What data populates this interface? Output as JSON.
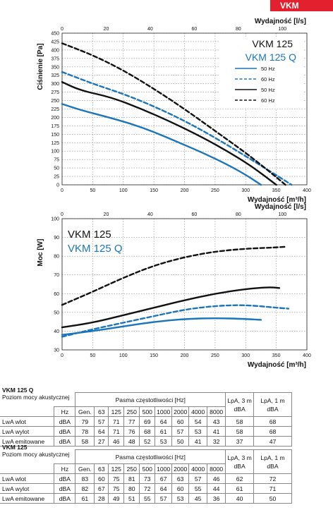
{
  "product_tag": "VKM",
  "chart_data": [
    {
      "type": "line",
      "title": "",
      "top_axis_label": "Wydajność [l/s]",
      "top_ticks": [
        "0",
        "20",
        "40",
        "60",
        "80",
        "100"
      ],
      "xlabel": "Wydajność [m³/h]",
      "ylabel": "Ciśnienie [Pa]",
      "xlim": [
        0,
        400
      ],
      "ylim": [
        0,
        450
      ],
      "x_ticks": [
        "0",
        "50",
        "100",
        "150",
        "200",
        "250",
        "300",
        "350",
        "400"
      ],
      "y_ticks": [
        "0",
        "25",
        "50",
        "75",
        "100",
        "125",
        "150",
        "175",
        "200",
        "225",
        "250",
        "275",
        "300",
        "325",
        "350",
        "375",
        "400",
        "425",
        "450"
      ],
      "model_labels": {
        "black": "VKM 125",
        "blue": "VKM 125 Q"
      },
      "legend": [
        "50 Hz",
        "60 Hz",
        "50 Hz",
        "60 Hz"
      ],
      "series": [
        {
          "name": "50 Hz",
          "model": "VKM 125 Q",
          "color": "#1b75bb",
          "dash": false,
          "x": [
            0,
            30,
            70,
            110,
            150,
            190,
            230,
            270,
            300,
            325
          ],
          "y": [
            240,
            222,
            203,
            183,
            157,
            126,
            95,
            60,
            30,
            0
          ]
        },
        {
          "name": "60 Hz",
          "model": "VKM 125 Q",
          "color": "#1b75bb",
          "dash": true,
          "x": [
            0,
            50,
            100,
            150,
            200,
            250,
            300,
            340,
            375
          ],
          "y": [
            335,
            300,
            270,
            233,
            190,
            140,
            85,
            40,
            0
          ]
        },
        {
          "name": "50 Hz",
          "model": "VKM 125",
          "color": "#111111",
          "dash": false,
          "x": [
            0,
            30,
            80,
            130,
            180,
            230,
            270,
            310,
            350
          ],
          "y": [
            305,
            280,
            260,
            225,
            185,
            140,
            100,
            55,
            0
          ]
        },
        {
          "name": "60 Hz",
          "model": "VKM 125",
          "color": "#111111",
          "dash": true,
          "x": [
            0,
            50,
            100,
            150,
            200,
            250,
            300,
            335,
            365
          ],
          "y": [
            420,
            385,
            340,
            285,
            225,
            160,
            95,
            45,
            0
          ]
        }
      ]
    },
    {
      "type": "line",
      "title": "",
      "top_axis_label": "Wydajność [l/s]",
      "top_ticks": [
        "0",
        "20",
        "40",
        "60",
        "80",
        "100"
      ],
      "xlabel": "Wydajność [m³/h]",
      "ylabel": "Moc [W]",
      "xlim": [
        0,
        400
      ],
      "ylim": [
        30,
        100
      ],
      "x_ticks": [
        "0",
        "50",
        "100",
        "150",
        "200",
        "250",
        "300",
        "350",
        "400"
      ],
      "y_ticks": [
        "30",
        "40",
        "50",
        "60",
        "70",
        "80",
        "90",
        "100"
      ],
      "model_labels": {
        "black": "VKM 125",
        "blue": "VKM 125 Q"
      },
      "series": [
        {
          "model": "VKM 125 Q",
          "variant": "50 Hz",
          "color": "#1b75bb",
          "dash": false,
          "x": [
            0,
            50,
            100,
            150,
            200,
            250,
            300,
            325
          ],
          "y": [
            38,
            40,
            42.5,
            45,
            46.5,
            47,
            46.5,
            46
          ]
        },
        {
          "model": "VKM 125 Q",
          "variant": "60 Hz",
          "color": "#1b75bb",
          "dash": true,
          "x": [
            0,
            50,
            100,
            150,
            200,
            250,
            300,
            350,
            370
          ],
          "y": [
            37,
            41,
            44.5,
            48,
            51.5,
            53.5,
            54,
            52.5,
            52
          ]
        },
        {
          "model": "VKM 125",
          "variant": "50 Hz",
          "color": "#111111",
          "dash": false,
          "x": [
            0,
            50,
            100,
            150,
            200,
            250,
            300,
            340,
            355
          ],
          "y": [
            42,
            44.5,
            48.5,
            52.5,
            56.5,
            60,
            62.5,
            63.5,
            63
          ]
        },
        {
          "model": "VKM 125",
          "variant": "60 Hz",
          "color": "#111111",
          "dash": true,
          "x": [
            0,
            50,
            100,
            150,
            200,
            250,
            300,
            340,
            365
          ],
          "y": [
            54,
            61,
            68.5,
            75,
            79.5,
            82.5,
            84,
            84.5,
            85
          ]
        }
      ]
    }
  ],
  "tables": [
    {
      "title": "VKM 125 Q",
      "subtitle": "Poziom mocy akustycznej",
      "band_header": "Pasma częstotliwości [Hz]",
      "unit_header": "Hz",
      "columns": [
        "Gen.",
        "63",
        "125",
        "250",
        "500",
        "1000",
        "2000",
        "4000",
        "8000"
      ],
      "lpa3": "LpA, 3 m dBA",
      "lpa1": "LpA, 1 m dBA",
      "rows": [
        {
          "label": "LwA wlot",
          "unit": "dBA",
          "values": [
            "79",
            "57",
            "71",
            "77",
            "69",
            "64",
            "60",
            "54",
            "43",
            "58",
            "68"
          ]
        },
        {
          "label": "LwA wylot",
          "unit": "dBA",
          "values": [
            "78",
            "64",
            "71",
            "76",
            "68",
            "61",
            "57",
            "53",
            "41",
            "58",
            "68"
          ]
        },
        {
          "label": "LwA emitowane",
          "unit": "dBA",
          "values": [
            "58",
            "27",
            "46",
            "48",
            "52",
            "53",
            "50",
            "41",
            "32",
            "37",
            "47"
          ]
        }
      ]
    },
    {
      "title": "VKM 125",
      "subtitle": "Poziom mocy akustycznej",
      "band_header": "Pasma częstotliwości [Hz]",
      "unit_header": "Hz",
      "columns": [
        "Gen.",
        "63",
        "125",
        "250",
        "500",
        "1000",
        "2000",
        "4000",
        "8000"
      ],
      "lpa3": "LpA, 3 m dBA",
      "lpa1": "LpA, 1 m dBA",
      "rows": [
        {
          "label": "LwA wlot",
          "unit": "dBA",
          "values": [
            "83",
            "60",
            "75",
            "81",
            "73",
            "67",
            "63",
            "57",
            "46",
            "62",
            "72"
          ]
        },
        {
          "label": "LwA wylot",
          "unit": "dBA",
          "values": [
            "82",
            "67",
            "75",
            "80",
            "72",
            "64",
            "60",
            "55",
            "44",
            "61",
            "71"
          ]
        },
        {
          "label": "LwA emitowane",
          "unit": "dBA",
          "values": [
            "61",
            "28",
            "49",
            "51",
            "55",
            "57",
            "53",
            "45",
            "36",
            "40",
            "50"
          ]
        }
      ]
    }
  ]
}
